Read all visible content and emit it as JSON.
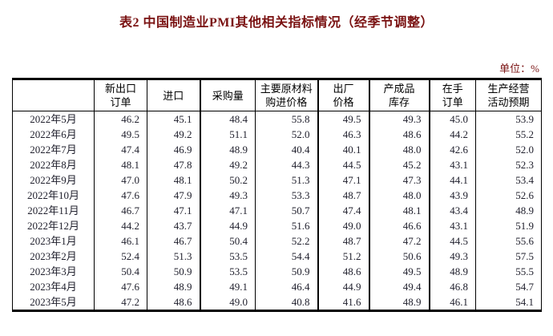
{
  "title": "表2 中国制造业PMI其他相关指标情况（经季节调整）",
  "unit_label": "单位：%",
  "colors": {
    "title_text": "#7a1212",
    "unit_text": "#7a1212",
    "table_border": "#000000",
    "cell_text": "#21212e",
    "header_text": "#000000",
    "background": "#ffffff"
  },
  "table": {
    "columns": [
      {
        "label": ""
      },
      {
        "label": "新出口\n订单"
      },
      {
        "label": "进口"
      },
      {
        "label": "采购量"
      },
      {
        "label": "主要原材料\n购进价格"
      },
      {
        "label": "出厂\n价格"
      },
      {
        "label": "产成品\n库存"
      },
      {
        "label": "在手\n订单"
      },
      {
        "label": "生产经营\n活动预期"
      }
    ],
    "rows": [
      {
        "date": "2022年5月",
        "values": [
          "46.2",
          "45.1",
          "48.4",
          "55.8",
          "49.5",
          "49.3",
          "45.0",
          "53.9"
        ]
      },
      {
        "date": "2022年6月",
        "values": [
          "49.5",
          "49.2",
          "51.1",
          "52.0",
          "46.3",
          "48.6",
          "44.2",
          "55.2"
        ]
      },
      {
        "date": "2022年7月",
        "values": [
          "47.4",
          "46.9",
          "48.9",
          "40.4",
          "40.1",
          "48.0",
          "42.6",
          "52.0"
        ]
      },
      {
        "date": "2022年8月",
        "values": [
          "48.1",
          "47.8",
          "49.2",
          "44.3",
          "44.5",
          "45.2",
          "43.1",
          "52.3"
        ]
      },
      {
        "date": "2022年9月",
        "values": [
          "47.0",
          "48.1",
          "50.2",
          "51.3",
          "47.1",
          "47.3",
          "44.1",
          "53.4"
        ]
      },
      {
        "date": "2022年10月",
        "values": [
          "47.6",
          "47.9",
          "49.3",
          "53.3",
          "48.7",
          "48.0",
          "43.9",
          "52.6"
        ]
      },
      {
        "date": "2022年11月",
        "values": [
          "46.7",
          "47.1",
          "47.1",
          "50.7",
          "47.4",
          "48.1",
          "43.4",
          "48.9"
        ]
      },
      {
        "date": "2022年12月",
        "values": [
          "44.2",
          "43.7",
          "44.9",
          "51.6",
          "49.0",
          "46.6",
          "43.1",
          "51.9"
        ]
      },
      {
        "date": "2023年1月",
        "values": [
          "46.1",
          "46.7",
          "50.4",
          "52.2",
          "48.7",
          "47.2",
          "44.5",
          "55.6"
        ]
      },
      {
        "date": "2023年2月",
        "values": [
          "52.4",
          "51.3",
          "53.5",
          "54.4",
          "51.2",
          "50.6",
          "49.3",
          "57.5"
        ]
      },
      {
        "date": "2023年3月",
        "values": [
          "50.4",
          "50.9",
          "53.5",
          "50.9",
          "48.6",
          "49.5",
          "48.9",
          "55.5"
        ]
      },
      {
        "date": "2023年4月",
        "values": [
          "47.6",
          "48.9",
          "49.1",
          "46.4",
          "44.9",
          "49.4",
          "46.8",
          "54.7"
        ]
      },
      {
        "date": "2023年5月",
        "values": [
          "47.2",
          "48.6",
          "49.0",
          "40.8",
          "41.6",
          "48.9",
          "46.1",
          "54.1"
        ]
      }
    ]
  }
}
